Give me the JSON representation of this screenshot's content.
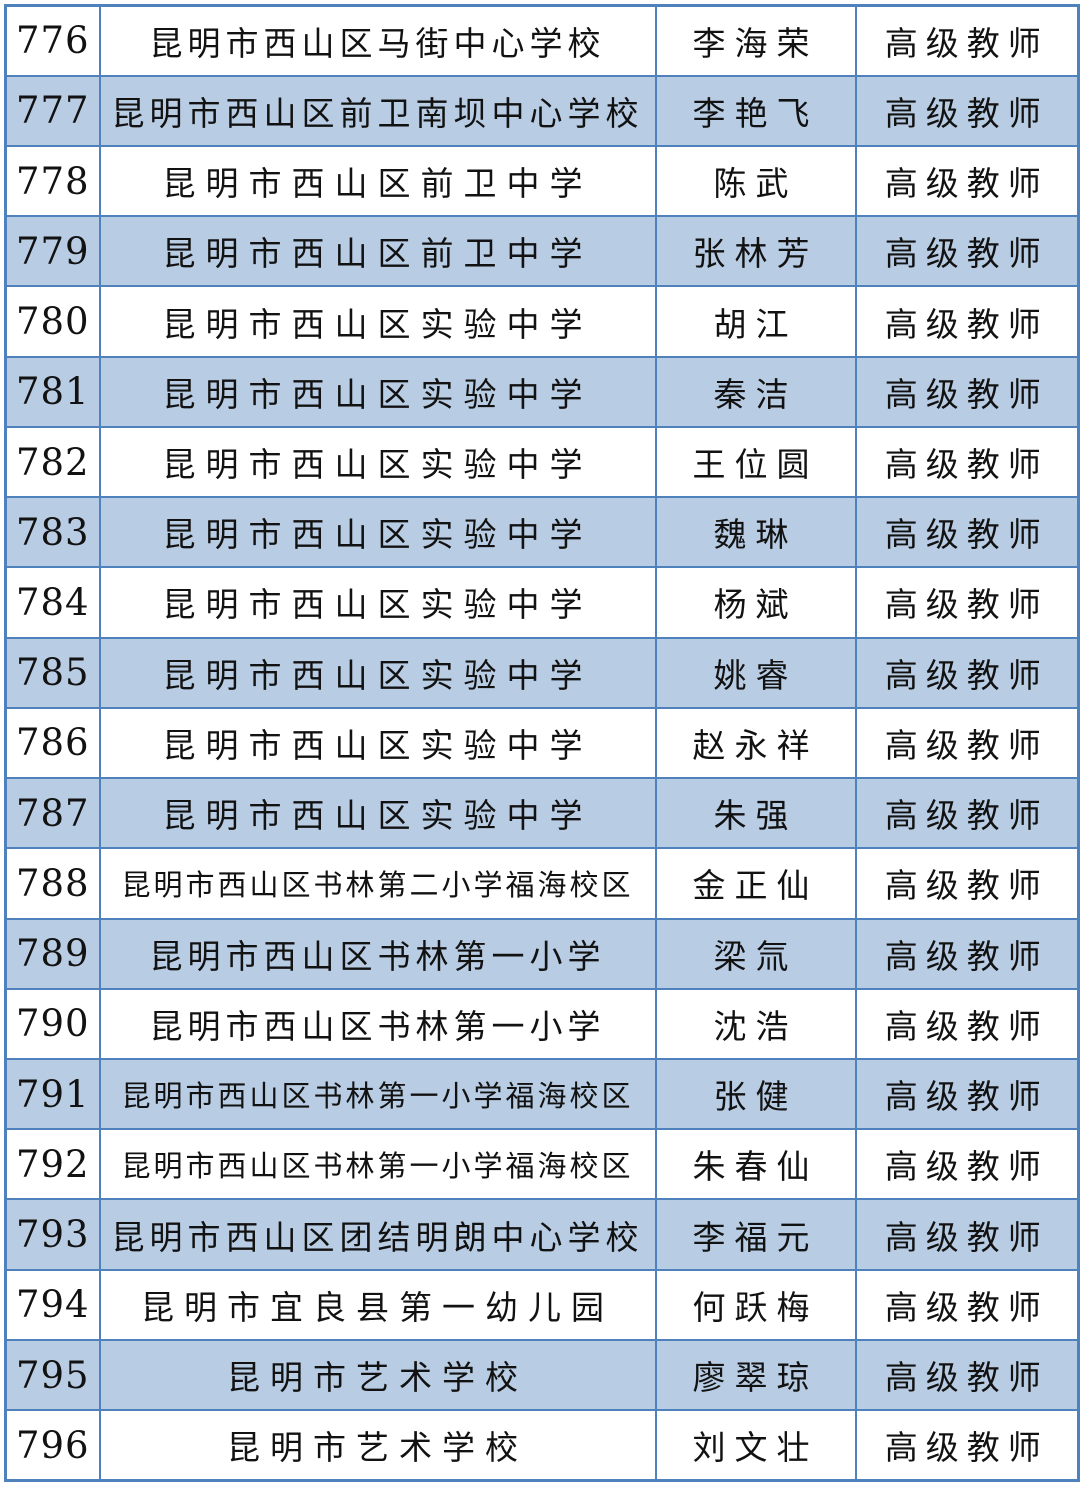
{
  "document": {
    "type": "teacher-qualification-roster-table",
    "colors": {
      "row_base": "#ffffff",
      "row_alt": "#b8cce4",
      "border": "#4f81bd",
      "text": "#121212"
    },
    "table": {
      "rows": [
        {
          "no": "776",
          "school": "昆明市西山区马街中心学校",
          "name": "李海荣",
          "title": "高级教师"
        },
        {
          "no": "777",
          "school": "昆明市西山区前卫南坝中心学校",
          "name": "李艳飞",
          "title": "高级教师"
        },
        {
          "no": "778",
          "school": "昆明市西山区前卫中学",
          "name": "陈武",
          "title": "高级教师"
        },
        {
          "no": "779",
          "school": "昆明市西山区前卫中学",
          "name": "张林芳",
          "title": "高级教师"
        },
        {
          "no": "780",
          "school": "昆明市西山区实验中学",
          "name": "胡江",
          "title": "高级教师"
        },
        {
          "no": "781",
          "school": "昆明市西山区实验中学",
          "name": "秦洁",
          "title": "高级教师"
        },
        {
          "no": "782",
          "school": "昆明市西山区实验中学",
          "name": "王位圆",
          "title": "高级教师"
        },
        {
          "no": "783",
          "school": "昆明市西山区实验中学",
          "name": "魏琳",
          "title": "高级教师"
        },
        {
          "no": "784",
          "school": "昆明市西山区实验中学",
          "name": "杨斌",
          "title": "高级教师"
        },
        {
          "no": "785",
          "school": "昆明市西山区实验中学",
          "name": "姚睿",
          "title": "高级教师"
        },
        {
          "no": "786",
          "school": "昆明市西山区实验中学",
          "name": "赵永祥",
          "title": "高级教师"
        },
        {
          "no": "787",
          "school": "昆明市西山区实验中学",
          "name": "朱强",
          "title": "高级教师"
        },
        {
          "no": "788",
          "school": "昆明市西山区书林第二小学福海校区",
          "name": "金正仙",
          "title": "高级教师"
        },
        {
          "no": "789",
          "school": "昆明市西山区书林第一小学",
          "name": "梁氚",
          "title": "高级教师"
        },
        {
          "no": "790",
          "school": "昆明市西山区书林第一小学",
          "name": "沈浩",
          "title": "高级教师"
        },
        {
          "no": "791",
          "school": "昆明市西山区书林第一小学福海校区",
          "name": "张健",
          "title": "高级教师"
        },
        {
          "no": "792",
          "school": "昆明市西山区书林第一小学福海校区",
          "name": "朱春仙",
          "title": "高级教师"
        },
        {
          "no": "793",
          "school": "昆明市西山区团结明朗中心学校",
          "name": "李福元",
          "title": "高级教师"
        },
        {
          "no": "794",
          "school": "昆明市宜良县第一幼儿园",
          "name": "何跃梅",
          "title": "高级教师"
        },
        {
          "no": "795",
          "school": "昆明市艺术学校",
          "name": "廖翠琼",
          "title": "高级教师"
        },
        {
          "no": "796",
          "school": "昆明市艺术学校",
          "name": "刘文壮",
          "title": "高级教师"
        }
      ]
    }
  }
}
